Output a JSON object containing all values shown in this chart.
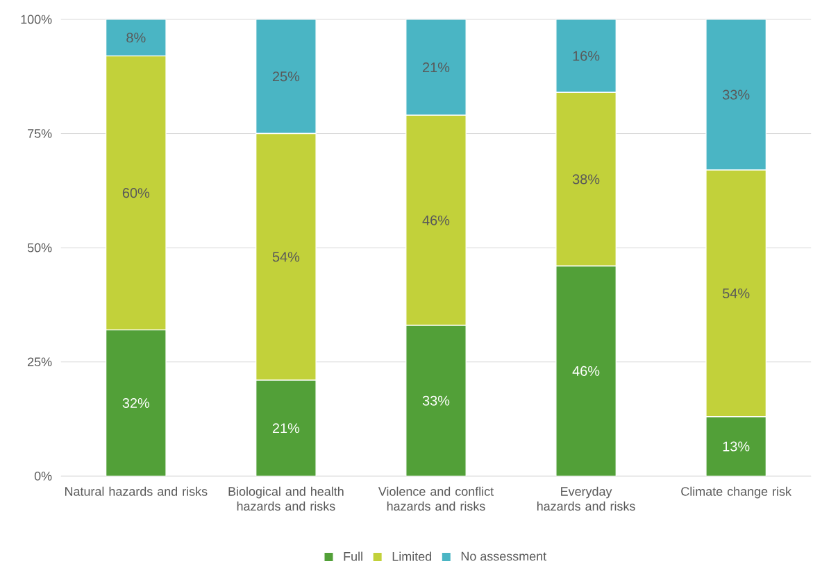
{
  "chart_data": {
    "type": "bar",
    "stacked": true,
    "categories": [
      "Natural hazards and risks",
      "Biological and health hazards and risks",
      "Violence and conflict hazards and risks",
      "Everyday hazards and risks",
      "Climate change risk"
    ],
    "series": [
      {
        "name": "Full",
        "color": "#52a038",
        "values": [
          32,
          21,
          33,
          46,
          13
        ],
        "value_labels": [
          "32%",
          "21%",
          "33%",
          "46%",
          "13%"
        ]
      },
      {
        "name": "Limited",
        "color": "#c2d13a",
        "values": [
          60,
          54,
          46,
          38,
          54
        ],
        "value_labels": [
          "60%",
          "54%",
          "46%",
          "38%",
          "54%"
        ]
      },
      {
        "name": "No assessment",
        "color": "#4ab5c4",
        "values": [
          8,
          25,
          21,
          16,
          33
        ],
        "value_labels": [
          "8%",
          "25%",
          "21%",
          "16%",
          "33%"
        ]
      }
    ],
    "ylim": [
      0,
      100
    ],
    "yticks": [
      {
        "value": 0,
        "label": "0%"
      },
      {
        "value": 25,
        "label": "25%"
      },
      {
        "value": 50,
        "label": "50%"
      },
      {
        "value": 75,
        "label": "75%"
      },
      {
        "value": 100,
        "label": "100%"
      }
    ],
    "grid": "y",
    "legend": "bottom"
  }
}
